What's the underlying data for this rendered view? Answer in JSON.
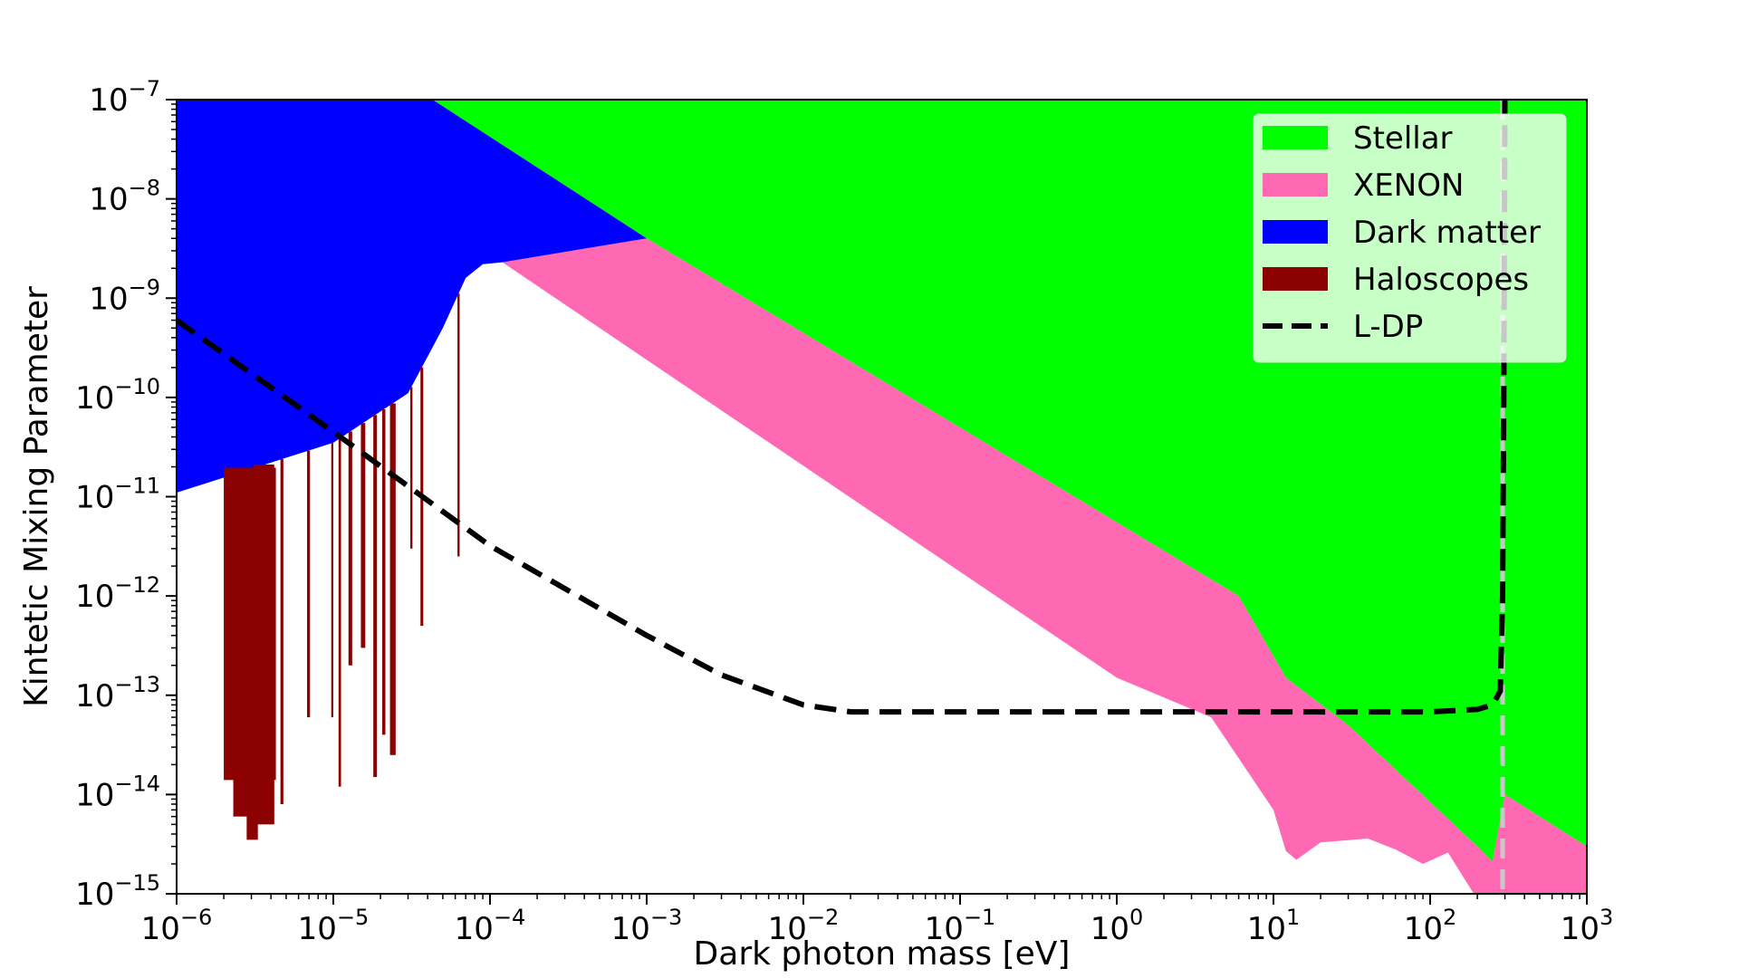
{
  "chart_data": {
    "type": "area",
    "xlabel": "Dark photon mass [eV]",
    "ylabel": "Kintetic Mixing Parameter",
    "xscale": "log",
    "yscale": "log",
    "xlim": [
      1e-06,
      1000
    ],
    "ylim": [
      1e-15,
      1e-07
    ],
    "x_ticks": [
      {
        "value": 1e-06,
        "base": "10",
        "exp": "−6"
      },
      {
        "value": 1e-05,
        "base": "10",
        "exp": "−5"
      },
      {
        "value": 0.0001,
        "base": "10",
        "exp": "−4"
      },
      {
        "value": 0.001,
        "base": "10",
        "exp": "−3"
      },
      {
        "value": 0.01,
        "base": "10",
        "exp": "−2"
      },
      {
        "value": 0.1,
        "base": "10",
        "exp": "−1"
      },
      {
        "value": 1,
        "base": "10",
        "exp": "0"
      },
      {
        "value": 10,
        "base": "10",
        "exp": "1"
      },
      {
        "value": 100,
        "base": "10",
        "exp": "2"
      },
      {
        "value": 1000,
        "base": "10",
        "exp": "3"
      }
    ],
    "y_ticks": [
      {
        "value": 1e-15,
        "base": "10",
        "exp": "−15"
      },
      {
        "value": 1e-14,
        "base": "10",
        "exp": "−14"
      },
      {
        "value": 1e-13,
        "base": "10",
        "exp": "−13"
      },
      {
        "value": 1e-12,
        "base": "10",
        "exp": "−12"
      },
      {
        "value": 1e-11,
        "base": "10",
        "exp": "−11"
      },
      {
        "value": 1e-10,
        "base": "10",
        "exp": "−10"
      },
      {
        "value": 1e-09,
        "base": "10",
        "exp": "−9"
      },
      {
        "value": 1e-08,
        "base": "10",
        "exp": "−8"
      },
      {
        "value": 1e-07,
        "base": "10",
        "exp": "−7"
      }
    ],
    "legend_position": "top-right",
    "series": [
      {
        "name": "Stellar",
        "kind": "region",
        "color": "#00ff00",
        "boundary": [
          [
            4.3e-05,
            1e-07
          ],
          [
            0.001,
            4e-09
          ],
          [
            6.0,
            1e-12
          ],
          [
            12.0,
            1.5e-13
          ],
          [
            30.0,
            5e-14
          ],
          [
            200.0,
            3e-15
          ],
          [
            250.0,
            2.1e-15
          ],
          [
            300.0,
            1e-14
          ],
          [
            1000.0,
            3e-15
          ]
        ]
      },
      {
        "name": "XENON",
        "kind": "region",
        "color": "#ff69b4",
        "boundary": [
          [
            0.00012,
            2.3e-09
          ],
          [
            0.001,
            4e-09
          ],
          [
            6,
            1e-12
          ],
          [
            12,
            1.5e-13
          ],
          [
            30,
            5e-14
          ],
          [
            200,
            3e-15
          ],
          [
            250,
            2.1e-15
          ],
          [
            300,
            1e-14
          ],
          [
            1000,
            3e-15
          ],
          [
            1000,
            1e-15
          ],
          [
            190,
            1e-15
          ],
          [
            130,
            2.6e-15
          ],
          [
            90,
            2e-15
          ],
          [
            60,
            2.8e-15
          ],
          [
            40,
            3.6e-15
          ],
          [
            20,
            3.3e-15
          ],
          [
            14,
            2.2e-15
          ],
          [
            12,
            2.7e-15
          ],
          [
            10,
            7e-15
          ],
          [
            4,
            6e-14
          ],
          [
            1,
            1.5e-13
          ]
        ]
      },
      {
        "name": "Dark matter",
        "kind": "region",
        "color": "#0000ff",
        "boundary": [
          [
            1e-06,
            1.1e-11
          ],
          [
            1e-05,
            3.5e-11
          ],
          [
            3e-05,
            1.1e-10
          ],
          [
            5e-05,
            5e-10
          ],
          [
            7e-05,
            1.6e-09
          ],
          [
            9e-05,
            2.2e-09
          ],
          [
            0.00012,
            2.3e-09
          ],
          [
            0.001,
            4e-09
          ],
          [
            4.3e-05,
            1e-07
          ],
          [
            1e-06,
            1e-07
          ]
        ]
      },
      {
        "name": "Haloscopes",
        "kind": "bands",
        "color": "#8b0000",
        "bands": [
          [
            2e-06,
            4.3e-06,
            1.4e-14
          ],
          [
            2.3e-06,
            3.5e-06,
            6e-15
          ],
          [
            2.8e-06,
            3.3e-06,
            3.5e-15
          ],
          [
            3.1e-06,
            4.2e-06,
            5e-15
          ],
          [
            4.6e-06,
            4.8e-06,
            8e-15
          ],
          [
            6.8e-06,
            7.1e-06,
            6e-14
          ],
          [
            9.7e-06,
            1e-05,
            6e-14
          ],
          [
            1.08e-05,
            1.12e-05,
            1.2e-14
          ],
          [
            1.25e-05,
            1.32e-05,
            2e-13
          ],
          [
            1.5e-05,
            1.6e-05,
            3e-13
          ],
          [
            1.8e-05,
            1.9e-05,
            1.5e-14
          ],
          [
            2.05e-05,
            2.15e-05,
            4e-14
          ],
          [
            2.3e-05,
            2.5e-05,
            2.5e-14
          ],
          [
            3.1e-05,
            3.2e-05,
            3e-12
          ],
          [
            3.6e-05,
            3.75e-05,
            5e-13
          ],
          [
            6.2e-05,
            6.4e-05,
            2.5e-12
          ]
        ]
      },
      {
        "name": "L-DP",
        "kind": "line",
        "color": "#000000",
        "dash": true,
        "points": [
          [
            1e-06,
            6e-10
          ],
          [
            1e-05,
            4.5e-11
          ],
          [
            0.0001,
            3.2e-12
          ],
          [
            0.001,
            4e-13
          ],
          [
            0.003,
            1.6e-13
          ],
          [
            0.01,
            8e-14
          ],
          [
            0.02,
            6.8e-14
          ],
          [
            100,
            6.8e-14
          ],
          [
            200,
            7.2e-14
          ],
          [
            250,
            8e-14
          ],
          [
            280,
            1.1e-13
          ],
          [
            290,
            1e-12
          ],
          [
            295,
            1e-10
          ],
          [
            300,
            1e-07
          ]
        ]
      }
    ],
    "annotations": [
      {
        "kind": "vline",
        "x": 290,
        "color": "#c8c8c8",
        "dash": true
      }
    ]
  }
}
